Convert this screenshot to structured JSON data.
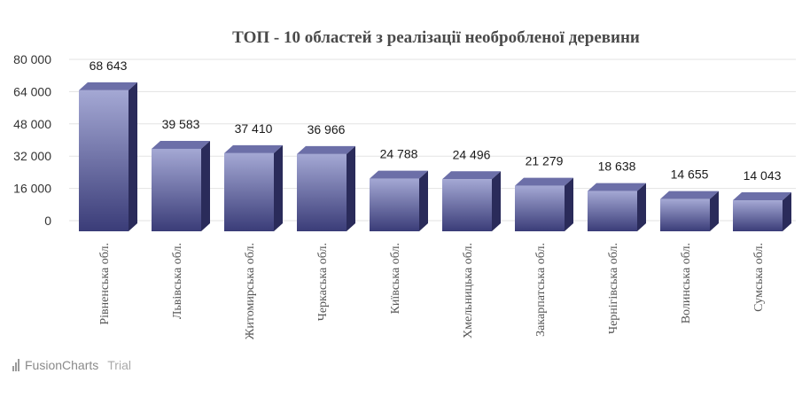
{
  "chart_data": {
    "type": "bar",
    "title": "ТОП - 10 областей з реалізації необробленої деревини",
    "categories": [
      "Рівненська обл.",
      "Львівська обл.",
      "Житомирська обл.",
      "Черкаська обл.",
      "Київська обл.",
      "Хмельницька обл.",
      "Закарпатська обл.",
      "Чернігівська обл.",
      "Волинська обл.",
      "Сумська обл."
    ],
    "values": [
      68643,
      39583,
      37410,
      36966,
      24788,
      24496,
      21279,
      18638,
      14655,
      14043
    ],
    "value_labels": [
      "68 643",
      "39 583",
      "37 410",
      "36 966",
      "24 788",
      "24 496",
      "21 279",
      "18 638",
      "14 655",
      "14 043"
    ],
    "yticks": [
      0,
      16000,
      32000,
      48000,
      64000,
      80000
    ],
    "ytick_labels": [
      "0",
      "16 000",
      "32 000",
      "48 000",
      "64 000",
      "80 000"
    ],
    "ylim": [
      0,
      80000
    ],
    "grid": true,
    "bar_style": "3d",
    "colors": {
      "bar_light": "#a4a8d4",
      "bar_dark": "#3a3c78",
      "bar_side": "#2a2b5a",
      "bar_top": "#6c6fa8"
    }
  },
  "watermark": {
    "brand": "FusionCharts",
    "suffix": "Trial"
  }
}
